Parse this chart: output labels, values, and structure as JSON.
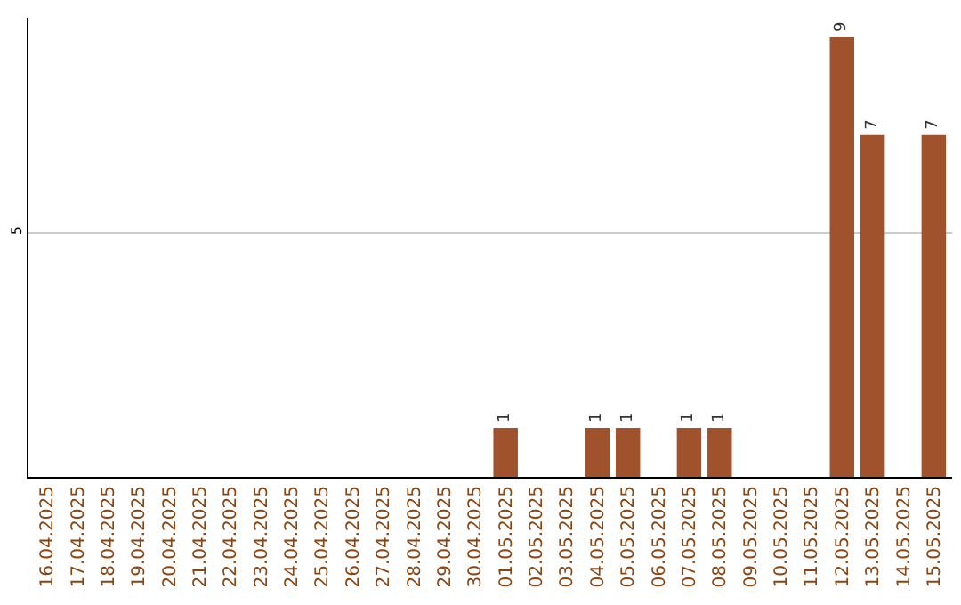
{
  "chart_data": {
    "type": "bar",
    "categories": [
      "16.04.2025",
      "17.04.2025",
      "18.04.2025",
      "19.04.2025",
      "20.04.2025",
      "21.04.2025",
      "22.04.2025",
      "23.04.2025",
      "24.04.2025",
      "25.04.2025",
      "26.04.2025",
      "27.04.2025",
      "28.04.2025",
      "29.04.2025",
      "30.04.2025",
      "01.05.2025",
      "02.05.2025",
      "03.05.2025",
      "04.05.2025",
      "05.05.2025",
      "06.05.2025",
      "07.05.2025",
      "08.05.2025",
      "09.05.2025",
      "10.05.2025",
      "11.05.2025",
      "12.05.2025",
      "13.05.2025",
      "14.05.2025",
      "15.05.2025"
    ],
    "values": [
      null,
      null,
      null,
      null,
      null,
      null,
      null,
      null,
      null,
      null,
      null,
      null,
      null,
      null,
      null,
      1,
      null,
      null,
      1,
      1,
      null,
      1,
      1,
      null,
      null,
      null,
      9,
      7,
      null,
      7
    ],
    "color": "#a0522d",
    "ylim": [
      0,
      9.4
    ],
    "yticks": [
      5
    ],
    "grid": "y",
    "data_labels": true,
    "legend": false
  }
}
